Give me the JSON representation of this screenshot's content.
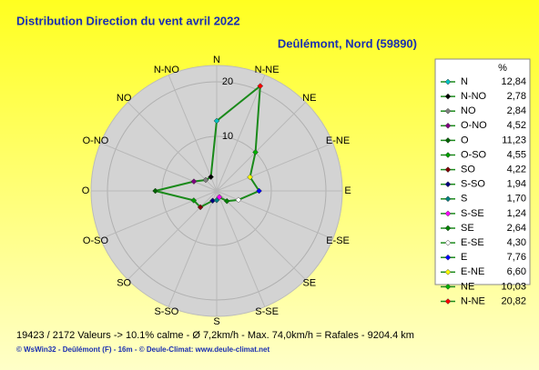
{
  "chart_data": {
    "type": "radar",
    "title": "Distribution Direction du vent   avril 2022",
    "subtitle": "Deûlémont, Nord (59890)",
    "legend_header": "%",
    "categories": [
      "N",
      "N-NO",
      "NO",
      "O-NO",
      "O",
      "O-SO",
      "SO",
      "S-SO",
      "S",
      "S-SE",
      "SE",
      "E-SE",
      "E",
      "E-NE",
      "NE",
      "N-NE"
    ],
    "values": [
      12.84,
      2.78,
      2.84,
      4.52,
      11.23,
      4.55,
      4.22,
      1.94,
      1.7,
      1.24,
      2.64,
      4.3,
      7.76,
      6.6,
      10.03,
      20.82
    ],
    "value_labels": [
      "12,84",
      "2,78",
      "2,84",
      "4,52",
      "11,23",
      "4,55",
      "4,22",
      "1,94",
      "1,70",
      "1,24",
      "2,64",
      "4,30",
      "7,76",
      "6,60",
      "10,03",
      "20,82"
    ],
    "colors": [
      "#00c0c0",
      "#000000",
      "#808080",
      "#800080",
      "#006400",
      "#00a000",
      "#800000",
      "#000080",
      "#008080",
      "#ff00ff",
      "#008000",
      "#ffffff",
      "#0000ff",
      "#ffff00",
      "#00b000",
      "#ff0000"
    ],
    "line_color": "#1a8a1a",
    "direction": "counterclockwise",
    "rlim": [
      0,
      23
    ],
    "rticks": [
      10,
      20
    ],
    "footer": [
      "19423 / 2172 Valeurs  -> 10.1% calme   -   Ø 7,2km/h   -   Max. 74,0km/h = Rafales   -   9204.4 km",
      "© WsWin32  -  Deûlémont (F) - 16m  -  © Deule-Climat: www.deule-climat.net"
    ]
  }
}
